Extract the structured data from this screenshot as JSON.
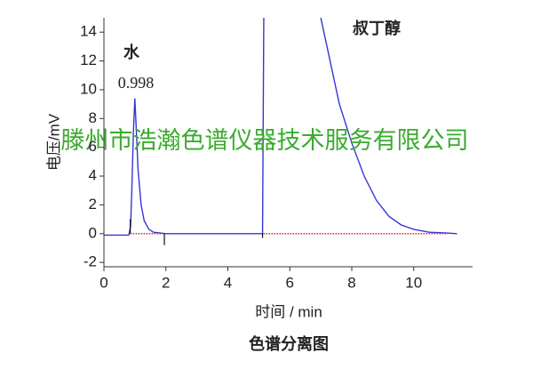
{
  "chart_data": {
    "type": "line",
    "title": "色谱分离图",
    "x_label": "时间 / min",
    "y_label": "电压/mV",
    "watermark": "滕州市浩瀚色谱仪器技术服务有限公司",
    "annotations": [
      "水",
      "0.998",
      "叔丁醇"
    ],
    "xlim": [
      0,
      11.9
    ],
    "xticks": [
      0,
      2,
      4,
      6,
      8,
      10
    ],
    "ylim": [
      -2.3,
      15
    ],
    "yticks": [
      -2,
      0,
      2,
      4,
      6,
      8,
      10,
      12,
      14
    ],
    "series": [
      {
        "color": "#3535d8",
        "style": "solid",
        "x": [
          0,
          0.8,
          0.86,
          0.9,
          0.95,
          0.998,
          1.05,
          1.1,
          1.2,
          1.3,
          1.45,
          1.6,
          2,
          3,
          4,
          5,
          5.12,
          5.16,
          5.2,
          7.0,
          7.3,
          7.6,
          8,
          8.4,
          8.8,
          9.2,
          9.6,
          10,
          10.5,
          11,
          11.4
        ],
        "values": [
          -0.1,
          -0.1,
          0.5,
          3,
          7,
          9.4,
          7,
          4.5,
          2,
          0.9,
          0.3,
          0.1,
          0,
          0,
          0,
          0,
          0,
          15,
          null,
          15,
          12,
          9,
          6.3,
          4,
          2.3,
          1.2,
          0.6,
          0.3,
          0.1,
          0.05,
          0
        ]
      },
      {
        "color": "#d42020",
        "style": "dotted",
        "x": [
          0.85,
          1.9,
          3,
          5.15,
          11.1
        ],
        "values": [
          0,
          0,
          null,
          0,
          0
        ]
      }
    ],
    "event_markers": [
      {
        "x": 0.85,
        "y0": 0,
        "y1": 1
      },
      {
        "x": 1.95,
        "y0": 0,
        "y1": -0.8
      },
      {
        "x": 5.12,
        "y0": 0,
        "y1": -0.3
      }
    ]
  }
}
